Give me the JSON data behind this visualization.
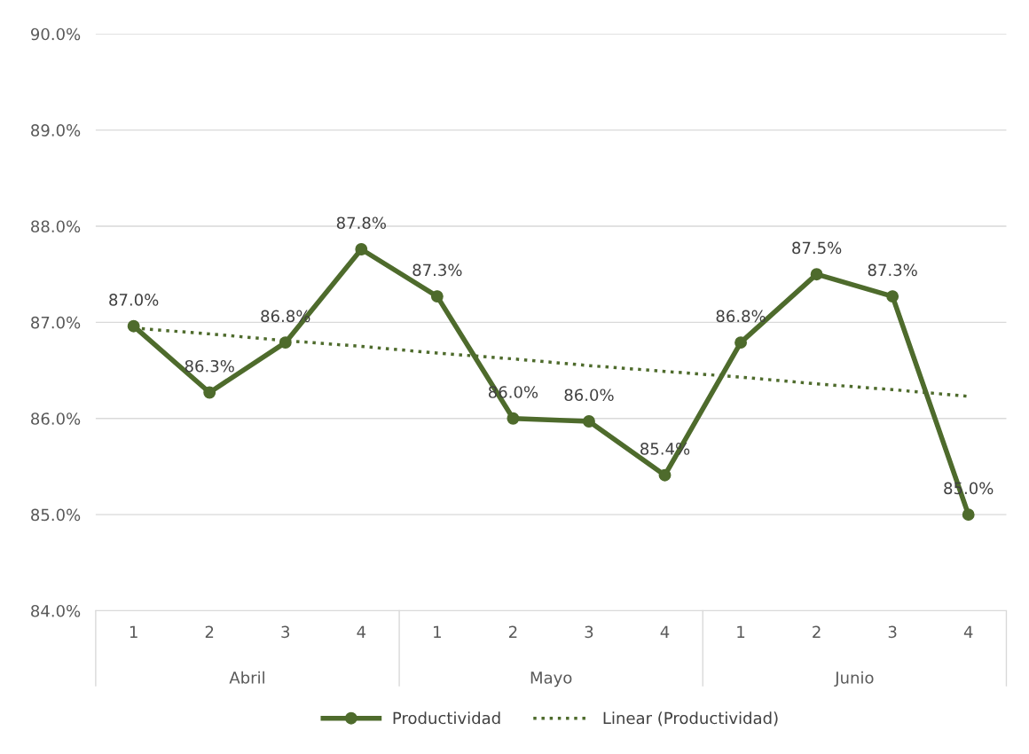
{
  "chart_data": {
    "type": "line",
    "categories": [
      "1",
      "2",
      "3",
      "4",
      "1",
      "2",
      "3",
      "4",
      "1",
      "2",
      "3",
      "4"
    ],
    "series": [
      {
        "name": "Productividad",
        "color": "#4e6b2c",
        "marker": "circle",
        "line_style": "solid",
        "values": [
          86.96,
          86.27,
          86.79,
          87.76,
          87.27,
          86.0,
          85.97,
          85.41,
          86.79,
          87.5,
          87.27,
          85.0
        ],
        "value_labels": [
          "87.0%",
          "86.3%",
          "86.8%",
          "87.8%",
          "87.3%",
          "86.0%",
          "86.0%",
          "85.4%",
          "86.8%",
          "87.5%",
          "87.3%",
          "85.0%"
        ]
      },
      {
        "name": "Linear (Productividad)",
        "color": "#4e6b2c",
        "marker": "none",
        "line_style": "dotted",
        "values": [
          86.94,
          86.88,
          86.81,
          86.75,
          86.68,
          86.62,
          86.55,
          86.49,
          86.43,
          86.36,
          86.3,
          86.23
        ]
      }
    ],
    "annotations": [
      "Abril",
      "Mayo",
      "Junio"
    ],
    "ylim": [
      84,
      90
    ],
    "yticks": [
      {
        "value": 84,
        "label": "84.0%"
      },
      {
        "value": 85,
        "label": "85.0%"
      },
      {
        "value": 86,
        "label": "86.0%"
      },
      {
        "value": 87,
        "label": "87.0%"
      },
      {
        "value": 88,
        "label": "88.0%"
      },
      {
        "value": 89,
        "label": "89.0%"
      },
      {
        "value": 90,
        "label": "90.0%"
      }
    ],
    "grid": "y",
    "legend": "bottom"
  }
}
